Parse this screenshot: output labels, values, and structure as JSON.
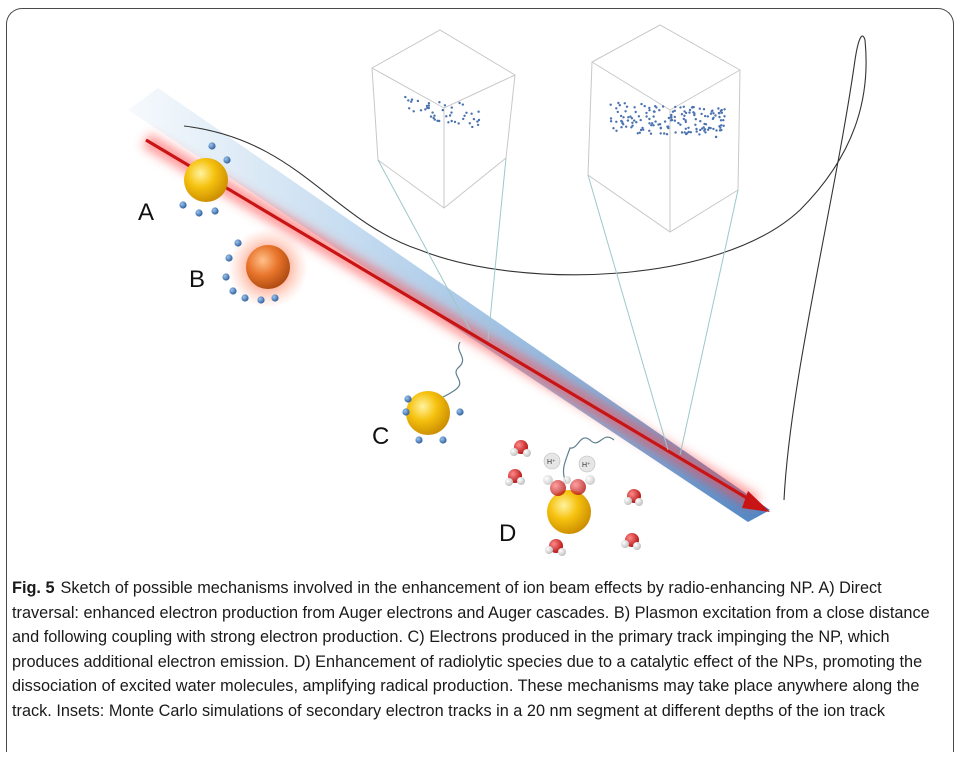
{
  "figure": {
    "labels": {
      "a": "A",
      "b": "B",
      "c": "C",
      "d": "D"
    },
    "ions": {
      "h1": "H⁺",
      "h2": "H⁺"
    },
    "colors": {
      "beam": "#d81f1f",
      "cone": "#5b9bd5",
      "gold": "#f2b705",
      "copper": "#e8742a",
      "electron": "#3d6fb0"
    }
  },
  "caption": {
    "figno": "Fig. 5",
    "text": "Sketch of possible mechanisms involved in the enhancement of ion beam effects by radio-enhancing NP. A) Direct traversal: enhanced electron production from Auger electrons and Auger cascades. B) Plasmon excitation from a close distance and following coupling with strong electron production. C) Electrons produced in the primary track impinging the NP, which produces additional electron emission. D) Enhancement of radiolytic species due to a catalytic effect of the NPs, promoting the dissociation of excited water molecules, amplifying radical production. These mechanisms may take place anywhere along the track. Insets: Monte Carlo simulations of secondary electron tracks in a 20 nm segment at different depths of the ion track"
  }
}
